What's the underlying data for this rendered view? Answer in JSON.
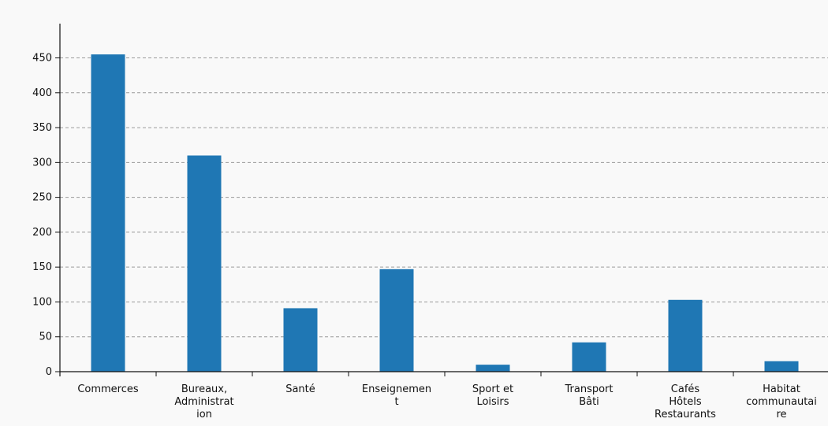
{
  "chart_data": {
    "type": "bar",
    "title": "",
    "xlabel": "",
    "ylabel": "",
    "ylim": [
      0,
      500
    ],
    "y_ticks": [
      "0",
      "50",
      "100",
      "150",
      "200",
      "250",
      "300",
      "350",
      "400",
      "450"
    ],
    "grid": "horizontal dashed",
    "bar_color": "#1f77b4",
    "categories": [
      [
        "Commerces"
      ],
      [
        "Bureaux,",
        "Administrat",
        "ion"
      ],
      [
        "Santé"
      ],
      [
        "Enseignemen",
        "t"
      ],
      [
        "Sport et",
        "Loisirs"
      ],
      [
        "Transport",
        "Bâti"
      ],
      [
        "Cafés",
        "Hôtels",
        "Restaurants"
      ],
      [
        "Habitat",
        "communautai",
        "re"
      ]
    ],
    "values": [
      455,
      310,
      91,
      147,
      10,
      42,
      103,
      15
    ]
  }
}
